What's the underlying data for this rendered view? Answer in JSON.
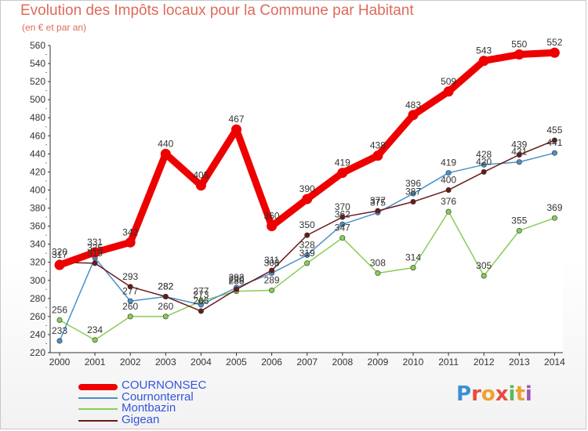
{
  "header": {
    "title": "Evolution des Impôts locaux pour la Commune par Habitant",
    "subtitle": "(en € et par an)"
  },
  "chart_data": {
    "type": "line",
    "title": "Evolution des Impôts locaux pour la Commune par Habitant",
    "subtitle": "(en € et par an)",
    "xlabel": "",
    "ylabel": "",
    "ylim": [
      220,
      560
    ],
    "yticks": [
      220,
      240,
      260,
      280,
      300,
      320,
      340,
      360,
      380,
      400,
      420,
      440,
      460,
      480,
      500,
      520,
      540,
      560
    ],
    "grid": false,
    "legend_position": "bottom-left",
    "x": [
      "2000",
      "2001",
      "2002",
      "2003",
      "2004",
      "2005",
      "2006",
      "2007",
      "2008",
      "2009",
      "2010",
      "2011",
      "2012",
      "2013",
      "2014"
    ],
    "series": [
      {
        "name": "COURNONSEC",
        "color": "#ee0000",
        "values": [
          317,
          331,
          342,
          440,
          405,
          467,
          360,
          390,
          419,
          438,
          483,
          509,
          543,
          550,
          552
        ]
      },
      {
        "name": "Cournonterral",
        "color": "#4a90c8",
        "values": [
          233,
          325,
          277,
          282,
          273,
          292,
          308,
          328,
          362,
          375,
          396,
          419,
          428,
          431,
          441
        ]
      },
      {
        "name": "Montbazin",
        "color": "#88cc55",
        "values": [
          256,
          234,
          260,
          260,
          277,
          288,
          289,
          319,
          347,
          308,
          314,
          376,
          305,
          355,
          369
        ]
      },
      {
        "name": "Gigean",
        "color": "#6b1a1a",
        "values": [
          320,
          319,
          293,
          282,
          266,
          290,
          311,
          350,
          370,
          377,
          387,
          400,
          420,
          439,
          455
        ]
      }
    ]
  },
  "legend": {
    "items": [
      {
        "label": "COURNONSEC",
        "color": "#ee0000",
        "text_color": "#3355dd"
      },
      {
        "label": "Cournonterral",
        "color": "#4a90c8",
        "text_color": "#3355dd"
      },
      {
        "label": "Montbazin",
        "color": "#88cc55",
        "text_color": "#3355dd"
      },
      {
        "label": "Gigean",
        "color": "#6b1a1a",
        "text_color": "#3355dd"
      }
    ]
  },
  "logo": {
    "parts": [
      "P",
      "r",
      "o",
      "x",
      "i",
      "t",
      "i"
    ]
  }
}
